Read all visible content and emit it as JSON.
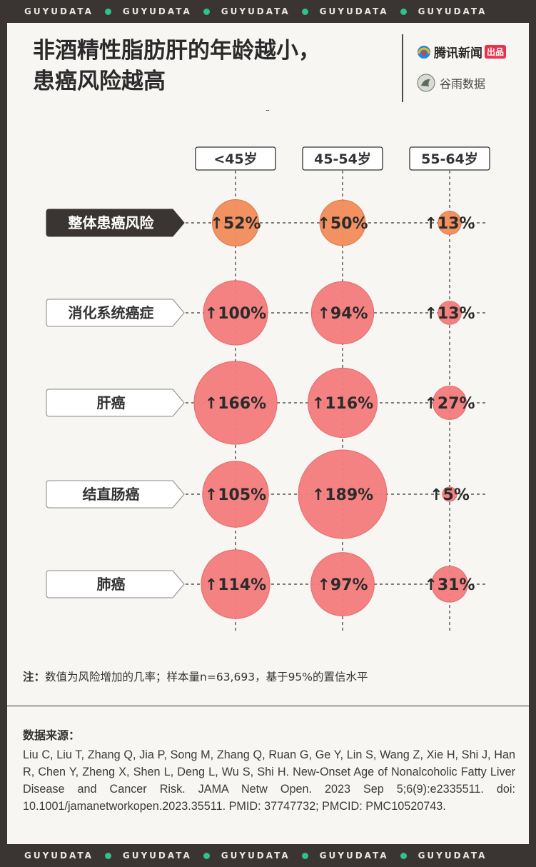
{
  "brand_band": {
    "word": "GUYUDATA",
    "dot_color": "#2fc28a"
  },
  "header": {
    "title_line1": "非酒精性脂肪肝的年龄越小，",
    "title_line2": "患癌风险越高",
    "brand_primary": "腾讯新闻",
    "brand_primary_tag": "出品",
    "brand_secondary": "谷雨数据"
  },
  "chart_data": {
    "type": "bubble",
    "age_groups": [
      "<45岁",
      "45-54岁",
      "55-64岁"
    ],
    "categories": [
      "整体患癌风险",
      "消化系统癌症",
      "肝癌",
      "结直肠癌",
      "肺癌"
    ],
    "highlight_category": "整体患癌风险",
    "rows": [
      {
        "category": "整体患癌风险",
        "values": [
          52,
          50,
          13
        ],
        "labels": [
          "↑52%",
          "↑50%",
          "↑13%"
        ],
        "color": "#f28c5a"
      },
      {
        "category": "消化系统癌症",
        "values": [
          100,
          94,
          13
        ],
        "labels": [
          "↑100%",
          "↑94%",
          "↑13%"
        ],
        "color": "#f47c7c"
      },
      {
        "category": "肝癌",
        "values": [
          166,
          116,
          27
        ],
        "labels": [
          "↑166%",
          "↑116%",
          "↑27%"
        ],
        "color": "#f47c7c"
      },
      {
        "category": "结直肠癌",
        "values": [
          105,
          189,
          5
        ],
        "labels": [
          "↑105%",
          "↑189%",
          "↑5%"
        ],
        "color": "#f47c7c"
      },
      {
        "category": "肺癌",
        "values": [
          114,
          97,
          31
        ],
        "labels": [
          "↑114%",
          "↑97%",
          "↑31%"
        ],
        "color": "#f47c7c"
      }
    ],
    "unit": "%"
  },
  "note": {
    "label": "注：",
    "text": "数值为风险增加的几率；样本量n=63,693，基于95%的置信水平"
  },
  "source": {
    "title": "数据来源：",
    "text": "Liu C, Liu T, Zhang Q, Jia P, Song M, Zhang Q, Ruan G, Ge Y, Lin S, Wang Z, Xie H, Shi J, Han R, Chen Y, Zheng X, Shen L, Deng L, Wu S, Shi H. New-Onset Age of Nonalcoholic Fatty Liver Disease and Cancer Risk. JAMA Netw Open. 2023 Sep 5;6(9):e2335511. doi: 10.1001/jamanetworkopen.2023.35511. PMID: 37747732; PMCID: PMC10520743."
  }
}
